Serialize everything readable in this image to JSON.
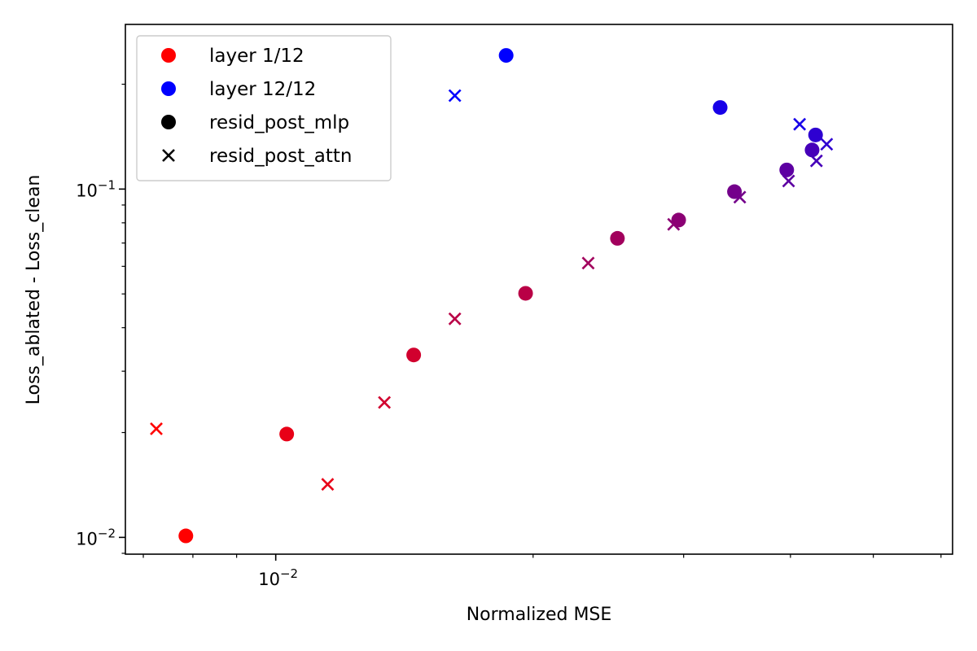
{
  "chart_data": {
    "type": "scatter",
    "xlabel": "Normalized MSE",
    "ylabel": "Loss_ablated - Loss_clean",
    "xscale": "log",
    "yscale": "log",
    "xlim": [
      0.00667,
      0.0619
    ],
    "ylim": [
      0.00895,
      0.297
    ],
    "x_ticks": [
      {
        "value": 0.01,
        "label": "10",
        "exp": "−2"
      }
    ],
    "y_ticks": [
      {
        "value": 0.01,
        "label": "10",
        "exp": "−2"
      },
      {
        "value": 0.1,
        "label": "10",
        "exp": "−1"
      }
    ],
    "grid": false,
    "legend": {
      "position": "top-left",
      "entries": [
        {
          "label": "layer 1/12",
          "marker": "dot",
          "color": "#ff0000"
        },
        {
          "label": "layer 12/12",
          "marker": "dot",
          "color": "#0000ff"
        },
        {
          "label": "resid_post_mlp",
          "marker": "dot",
          "color": "#000000"
        },
        {
          "label": "resid_post_attn",
          "marker": "x",
          "color": "#000000"
        }
      ]
    },
    "series": [
      {
        "marker": "dot",
        "points": [
          {
            "layer": 1,
            "x": 0.00785,
            "y": 0.0101
          },
          {
            "layer": 2,
            "x": 0.0103,
            "y": 0.0198
          },
          {
            "layer": 3,
            "x": 0.0145,
            "y": 0.0334
          },
          {
            "layer": 4,
            "x": 0.0196,
            "y": 0.0502
          },
          {
            "layer": 5,
            "x": 0.0251,
            "y": 0.0722
          },
          {
            "layer": 6,
            "x": 0.0296,
            "y": 0.0815
          },
          {
            "layer": 7,
            "x": 0.0344,
            "y": 0.0983
          },
          {
            "layer": 8,
            "x": 0.0396,
            "y": 0.1135
          },
          {
            "layer": 9,
            "x": 0.0424,
            "y": 0.1295
          },
          {
            "layer": 10,
            "x": 0.0428,
            "y": 0.143
          },
          {
            "layer": 11,
            "x": 0.0331,
            "y": 0.1715
          },
          {
            "layer": 12,
            "x": 0.0186,
            "y": 0.242
          }
        ]
      },
      {
        "marker": "x",
        "points": [
          {
            "layer": 1,
            "x": 0.00725,
            "y": 0.0205
          },
          {
            "layer": 2,
            "x": 0.0115,
            "y": 0.0142
          },
          {
            "layer": 3,
            "x": 0.0134,
            "y": 0.0244
          },
          {
            "layer": 4,
            "x": 0.0162,
            "y": 0.0424
          },
          {
            "layer": 5,
            "x": 0.0232,
            "y": 0.0613
          },
          {
            "layer": 6,
            "x": 0.0292,
            "y": 0.0792
          },
          {
            "layer": 7,
            "x": 0.0349,
            "y": 0.0948
          },
          {
            "layer": 8,
            "x": 0.0398,
            "y": 0.1055
          },
          {
            "layer": 9,
            "x": 0.0429,
            "y": 0.1205
          },
          {
            "layer": 10,
            "x": 0.0441,
            "y": 0.1345
          },
          {
            "layer": 11,
            "x": 0.041,
            "y": 0.1535
          },
          {
            "layer": 12,
            "x": 0.0162,
            "y": 0.1855
          }
        ]
      }
    ]
  }
}
